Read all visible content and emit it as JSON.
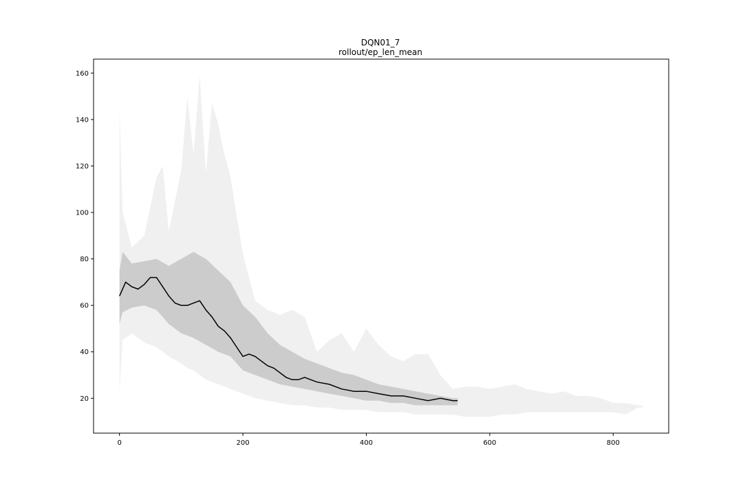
{
  "chart_data": {
    "type": "line",
    "title": "DQN01_7",
    "subtitle": "rollout/ep_len_mean",
    "xlabel": "",
    "ylabel": "",
    "xlim": [
      -42,
      890
    ],
    "ylim": [
      5,
      166
    ],
    "x_ticks": [
      0,
      200,
      400,
      600,
      800
    ],
    "y_ticks": [
      20,
      40,
      60,
      80,
      100,
      120,
      140,
      160
    ],
    "grid": false,
    "colors": {
      "line": "#000000",
      "band_inner": "#cccccc",
      "band_outer": "#f0f0f0"
    },
    "mean": {
      "x": [
        0,
        5,
        10,
        20,
        30,
        40,
        50,
        60,
        70,
        80,
        90,
        100,
        110,
        120,
        130,
        140,
        150,
        160,
        170,
        180,
        190,
        200,
        210,
        220,
        230,
        240,
        250,
        260,
        270,
        280,
        290,
        300,
        320,
        340,
        360,
        380,
        400,
        420,
        440,
        460,
        480,
        500,
        520,
        540,
        548
      ],
      "y": [
        64,
        67,
        70,
        68,
        67,
        69,
        72,
        72,
        68,
        64,
        61,
        60,
        60,
        61,
        62,
        58,
        55,
        51,
        49,
        46,
        42,
        38,
        39,
        38,
        36,
        34,
        33,
        31,
        29,
        28,
        28,
        29,
        27,
        26,
        24,
        23,
        23,
        22,
        21,
        21,
        20,
        19,
        20,
        19,
        19
      ]
    },
    "inner_band": {
      "x": [
        0,
        5,
        20,
        40,
        60,
        80,
        100,
        120,
        140,
        160,
        180,
        200,
        220,
        240,
        260,
        280,
        300,
        320,
        340,
        360,
        380,
        400,
        420,
        440,
        460,
        480,
        500,
        520,
        540,
        548
      ],
      "upper": [
        75,
        83,
        78,
        79,
        80,
        77,
        80,
        83,
        80,
        75,
        70,
        60,
        55,
        48,
        43,
        40,
        37,
        35,
        33,
        31,
        30,
        28,
        26,
        25,
        24,
        23,
        22,
        21,
        20,
        20
      ],
      "lower": [
        52,
        57,
        59,
        60,
        58,
        52,
        48,
        46,
        43,
        40,
        38,
        32,
        30,
        28,
        26,
        25,
        24,
        23,
        22,
        21,
        20,
        19,
        19,
        18,
        18,
        17,
        17,
        17,
        17,
        17
      ]
    },
    "outer_band": {
      "x": [
        0,
        5,
        20,
        40,
        60,
        70,
        80,
        100,
        110,
        120,
        130,
        140,
        150,
        160,
        170,
        180,
        200,
        220,
        240,
        260,
        280,
        300,
        320,
        340,
        360,
        380,
        400,
        420,
        440,
        460,
        480,
        500,
        520,
        540,
        560,
        580,
        600,
        620,
        640,
        660,
        680,
        700,
        720,
        740,
        760,
        780,
        800,
        820,
        840,
        848
      ],
      "upper": [
        144,
        100,
        85,
        90,
        115,
        120,
        92,
        118,
        150,
        125,
        159,
        117,
        147,
        138,
        125,
        115,
        82,
        62,
        58,
        56,
        58,
        55,
        40,
        45,
        48,
        40,
        50,
        43,
        38,
        36,
        39,
        39,
        30,
        24,
        25,
        25,
        24,
        25,
        26,
        24,
        23,
        22,
        23,
        21,
        21,
        20,
        18,
        18,
        17,
        17
      ],
      "lower": [
        23,
        45,
        48,
        44,
        42,
        40,
        38,
        35,
        33,
        32,
        30,
        28,
        27,
        26,
        25,
        24,
        22,
        20,
        19,
        18,
        17,
        17,
        16,
        16,
        15,
        15,
        15,
        14,
        14,
        14,
        13,
        13,
        13,
        13,
        12,
        12,
        12,
        13,
        13,
        14,
        14,
        14,
        14,
        14,
        14,
        14,
        14,
        13,
        16,
        16
      ]
    }
  }
}
